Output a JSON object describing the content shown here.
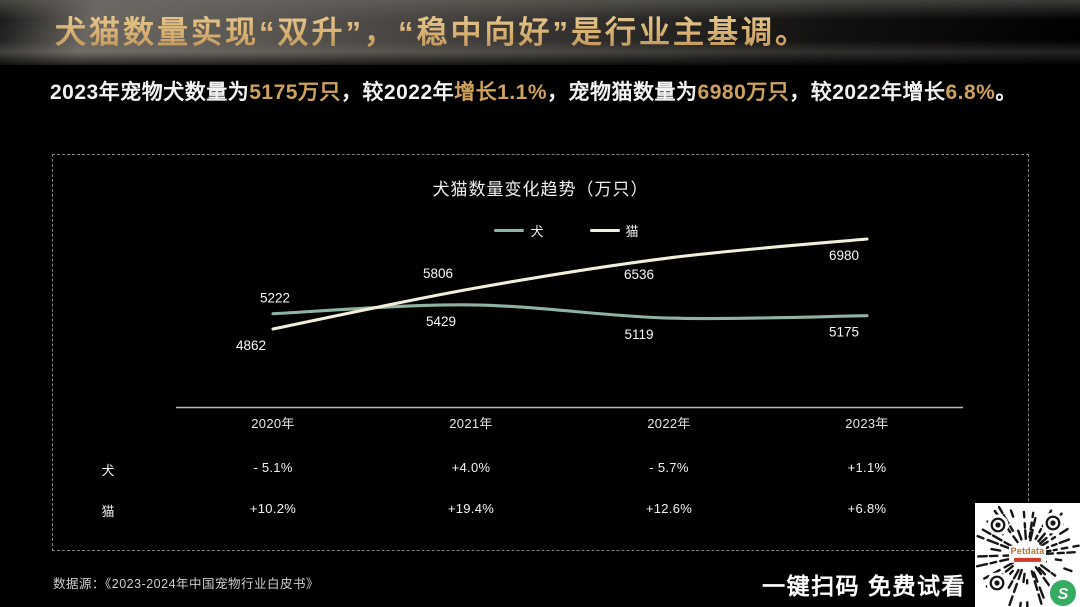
{
  "header": {
    "title": "犬猫数量实现“双升”，“稳中向好”是行业主基调。"
  },
  "subtitle": {
    "segments": [
      {
        "text": "2023年宠物犬数量为",
        "gold": false
      },
      {
        "text": "5175万只",
        "gold": true
      },
      {
        "text": "，较2022年",
        "gold": false
      },
      {
        "text": "增长1.1%",
        "gold": true
      },
      {
        "text": "，宠物猫数量为",
        "gold": false
      },
      {
        "text": "6980万只",
        "gold": true
      },
      {
        "text": "，较2022年增长",
        "gold": false
      },
      {
        "text": "6.8%",
        "gold": true
      },
      {
        "text": "。",
        "gold": false
      }
    ]
  },
  "chart_data": {
    "type": "line",
    "title": "犬猫数量变化趋势（万只）",
    "categories": [
      "2020年",
      "2021年",
      "2022年",
      "2023年"
    ],
    "series": [
      {
        "name": "犬",
        "color": "#8fb3a3",
        "values": [
          5222,
          5429,
          5119,
          5175
        ],
        "label_pos": [
          "above",
          "below",
          "below",
          "below"
        ]
      },
      {
        "name": "猫",
        "color": "#f2eeda",
        "values": [
          4862,
          5806,
          6536,
          6980
        ],
        "label_pos": [
          "below",
          "above",
          "below",
          "below"
        ]
      }
    ],
    "ylim": [
      4862,
      6980
    ],
    "legend_position": "top-center",
    "grid": false,
    "x_axis_line": true
  },
  "table": {
    "rows": [
      {
        "label": "犬",
        "values": [
          "- 5.1%",
          "+4.0%",
          "- 5.7%",
          "+1.1%"
        ]
      },
      {
        "label": "猫",
        "values": [
          "+10.2%",
          "+19.4%",
          "+12.6%",
          "+6.8%"
        ]
      }
    ]
  },
  "footer": {
    "source": "数据源：《2023-2024年中国宠物行业白皮书》",
    "cta": "一键扫码 免费试看",
    "qr": {
      "brand": "Petdata",
      "wechat_glyph": "S"
    }
  },
  "colors": {
    "gold_accent": "#cfa25c",
    "title_gold": "#d3a963",
    "dog_line": "#8fb3a3",
    "cat_line": "#f2eeda",
    "wechat_green": "#35ac62",
    "petdata_orange": "#b0712f",
    "tagline_red": "#d03a2a"
  }
}
